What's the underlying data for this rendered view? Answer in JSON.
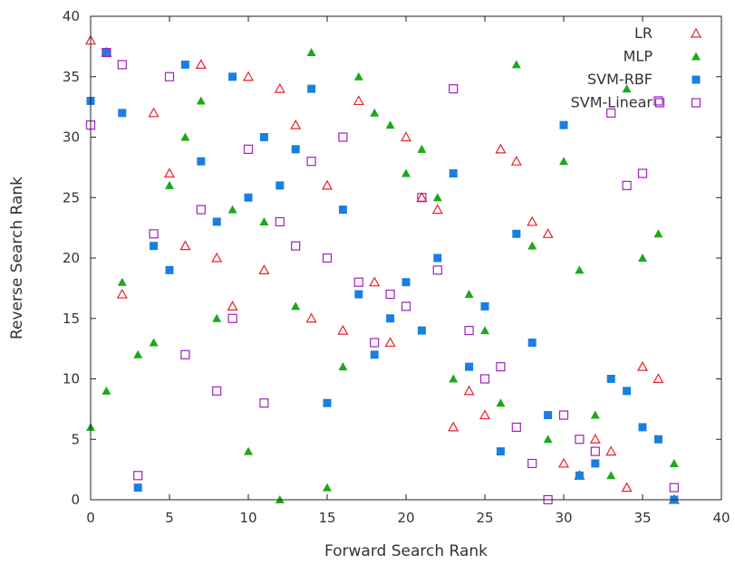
{
  "chart_data": {
    "type": "scatter",
    "title": "",
    "xlabel": "Forward Search Rank",
    "ylabel": "Reverse Search Rank",
    "xlim": [
      0,
      40
    ],
    "ylim": [
      0,
      40
    ],
    "xticks": [
      0,
      5,
      10,
      15,
      20,
      25,
      30,
      35,
      40
    ],
    "yticks": [
      0,
      5,
      10,
      15,
      20,
      25,
      30,
      35,
      40
    ],
    "grid": false,
    "legend_position": "top-right",
    "series": [
      {
        "name": "LR",
        "marker": "triangle-open",
        "color": "#e8202a",
        "points": [
          [
            0,
            38
          ],
          [
            1,
            37
          ],
          [
            2,
            17
          ],
          [
            4,
            32
          ],
          [
            5,
            27
          ],
          [
            6,
            21
          ],
          [
            7,
            36
          ],
          [
            8,
            20
          ],
          [
            9,
            16
          ],
          [
            10,
            35
          ],
          [
            11,
            19
          ],
          [
            12,
            34
          ],
          [
            13,
            31
          ],
          [
            14,
            15
          ],
          [
            15,
            26
          ],
          [
            16,
            14
          ],
          [
            17,
            33
          ],
          [
            18,
            18
          ],
          [
            19,
            13
          ],
          [
            20,
            30
          ],
          [
            21,
            25
          ],
          [
            22,
            24
          ],
          [
            23,
            6
          ],
          [
            24,
            9
          ],
          [
            25,
            7
          ],
          [
            26,
            29
          ],
          [
            27,
            28
          ],
          [
            28,
            23
          ],
          [
            29,
            22
          ],
          [
            30,
            3
          ],
          [
            31,
            2
          ],
          [
            32,
            5
          ],
          [
            33,
            4
          ],
          [
            34,
            1
          ],
          [
            35,
            11
          ],
          [
            36,
            10
          ],
          [
            37,
            0
          ]
        ]
      },
      {
        "name": "MLP",
        "marker": "triangle-filled",
        "color": "#1aaa1a",
        "points": [
          [
            0,
            6
          ],
          [
            1,
            9
          ],
          [
            2,
            18
          ],
          [
            3,
            12
          ],
          [
            4,
            13
          ],
          [
            5,
            26
          ],
          [
            6,
            30
          ],
          [
            7,
            33
          ],
          [
            8,
            15
          ],
          [
            9,
            24
          ],
          [
            10,
            4
          ],
          [
            11,
            23
          ],
          [
            12,
            0
          ],
          [
            13,
            16
          ],
          [
            14,
            37
          ],
          [
            15,
            1
          ],
          [
            16,
            11
          ],
          [
            17,
            35
          ],
          [
            18,
            32
          ],
          [
            19,
            31
          ],
          [
            20,
            27
          ],
          [
            21,
            29
          ],
          [
            22,
            25
          ],
          [
            23,
            10
          ],
          [
            24,
            17
          ],
          [
            25,
            14
          ],
          [
            26,
            8
          ],
          [
            27,
            36
          ],
          [
            28,
            21
          ],
          [
            29,
            5
          ],
          [
            30,
            28
          ],
          [
            31,
            19
          ],
          [
            32,
            7
          ],
          [
            33,
            2
          ],
          [
            34,
            34
          ],
          [
            35,
            20
          ],
          [
            36,
            22
          ],
          [
            37,
            3
          ]
        ]
      },
      {
        "name": "SVM-RBF",
        "marker": "square-filled",
        "color": "#1a7fe0",
        "points": [
          [
            0,
            33
          ],
          [
            1,
            37
          ],
          [
            2,
            32
          ],
          [
            3,
            1
          ],
          [
            4,
            21
          ],
          [
            5,
            19
          ],
          [
            6,
            36
          ],
          [
            7,
            28
          ],
          [
            8,
            23
          ],
          [
            9,
            35
          ],
          [
            10,
            25
          ],
          [
            11,
            30
          ],
          [
            12,
            26
          ],
          [
            13,
            29
          ],
          [
            14,
            34
          ],
          [
            15,
            8
          ],
          [
            16,
            24
          ],
          [
            17,
            17
          ],
          [
            18,
            12
          ],
          [
            19,
            15
          ],
          [
            20,
            18
          ],
          [
            21,
            14
          ],
          [
            22,
            20
          ],
          [
            23,
            27
          ],
          [
            24,
            11
          ],
          [
            25,
            16
          ],
          [
            26,
            4
          ],
          [
            27,
            22
          ],
          [
            28,
            13
          ],
          [
            29,
            7
          ],
          [
            30,
            31
          ],
          [
            31,
            2
          ],
          [
            32,
            3
          ],
          [
            33,
            10
          ],
          [
            34,
            9
          ],
          [
            35,
            6
          ],
          [
            36,
            5
          ],
          [
            37,
            0
          ]
        ]
      },
      {
        "name": "SVM-Linear",
        "marker": "square-open",
        "color": "#a020c0",
        "points": [
          [
            0,
            31
          ],
          [
            1,
            37
          ],
          [
            2,
            36
          ],
          [
            3,
            2
          ],
          [
            4,
            22
          ],
          [
            5,
            35
          ],
          [
            6,
            12
          ],
          [
            7,
            24
          ],
          [
            8,
            9
          ],
          [
            9,
            15
          ],
          [
            10,
            29
          ],
          [
            11,
            8
          ],
          [
            12,
            23
          ],
          [
            13,
            21
          ],
          [
            14,
            28
          ],
          [
            15,
            20
          ],
          [
            16,
            30
          ],
          [
            17,
            18
          ],
          [
            18,
            13
          ],
          [
            19,
            17
          ],
          [
            20,
            16
          ],
          [
            21,
            25
          ],
          [
            22,
            19
          ],
          [
            23,
            34
          ],
          [
            24,
            14
          ],
          [
            25,
            10
          ],
          [
            26,
            11
          ],
          [
            27,
            6
          ],
          [
            28,
            3
          ],
          [
            29,
            0
          ],
          [
            30,
            7
          ],
          [
            31,
            5
          ],
          [
            32,
            4
          ],
          [
            33,
            32
          ],
          [
            34,
            26
          ],
          [
            35,
            27
          ],
          [
            36,
            33
          ],
          [
            37,
            1
          ]
        ]
      }
    ]
  }
}
